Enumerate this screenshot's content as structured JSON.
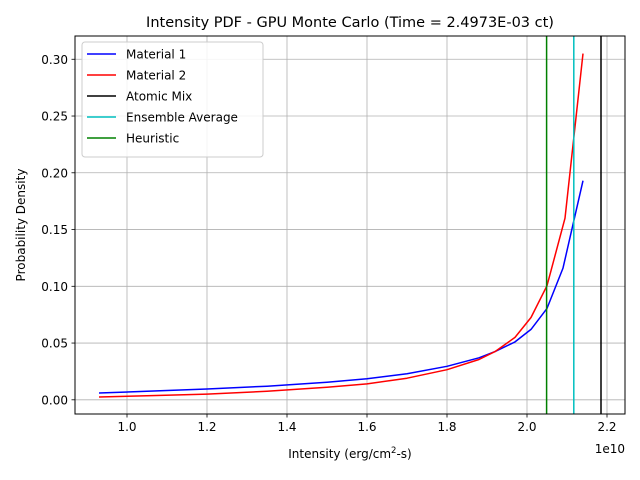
{
  "chart_data": {
    "type": "line",
    "title": "Intensity PDF - GPU Monte Carlo (Time = 2.4973E-03 ct)",
    "xlabel_main": "Intensity (erg/cm",
    "xlabel_sup": "2",
    "xlabel_tail": "-s)",
    "ylabel": "Probability Density",
    "x_offset_label": "1e10",
    "xlim": [
      0.87,
      2.245
    ],
    "ylim": [
      -0.0125,
      0.3205
    ],
    "grid": true,
    "legend_position": "top-left",
    "x_ticks": [
      {
        "value": 1.0,
        "label": "1.0"
      },
      {
        "value": 1.2,
        "label": "1.2"
      },
      {
        "value": 1.4,
        "label": "1.4"
      },
      {
        "value": 1.6,
        "label": "1.6"
      },
      {
        "value": 1.8,
        "label": "1.8"
      },
      {
        "value": 2.0,
        "label": "2.0"
      },
      {
        "value": 2.2,
        "label": "2.2"
      }
    ],
    "y_ticks": [
      {
        "value": 0.0,
        "label": "0.00"
      },
      {
        "value": 0.05,
        "label": "0.05"
      },
      {
        "value": 0.1,
        "label": "0.10"
      },
      {
        "value": 0.15,
        "label": "0.15"
      },
      {
        "value": 0.2,
        "label": "0.20"
      },
      {
        "value": 0.25,
        "label": "0.25"
      },
      {
        "value": 0.3,
        "label": "0.30"
      }
    ],
    "series": [
      {
        "name": "Material 1",
        "color": "#0000ff",
        "x": [
          0.93,
          1.05,
          1.2,
          1.35,
          1.5,
          1.6,
          1.7,
          1.8,
          1.88,
          1.92,
          1.97,
          2.01,
          2.05,
          2.09,
          2.14
        ],
        "y": [
          0.006,
          0.0075,
          0.0095,
          0.012,
          0.0155,
          0.0185,
          0.023,
          0.0295,
          0.037,
          0.0425,
          0.051,
          0.062,
          0.0805,
          0.116,
          0.193
        ]
      },
      {
        "name": "Material 2",
        "color": "#ff0000",
        "x": [
          0.93,
          1.05,
          1.2,
          1.35,
          1.5,
          1.6,
          1.7,
          1.8,
          1.88,
          1.92,
          1.97,
          2.01,
          2.05,
          2.095,
          2.14
        ],
        "y": [
          0.0025,
          0.0035,
          0.005,
          0.0075,
          0.011,
          0.014,
          0.019,
          0.0265,
          0.0355,
          0.0425,
          0.055,
          0.0725,
          0.1005,
          0.16,
          0.305
        ]
      }
    ],
    "vertical_lines": [
      {
        "name": "Atomic Mix",
        "color": "#000000",
        "x": 2.185
      },
      {
        "name": "Ensemble Average",
        "color": "#00bfbf",
        "x": 2.117
      },
      {
        "name": "Heuristic",
        "color": "#008000",
        "x": 2.049
      }
    ],
    "legend_order": [
      "Material 1",
      "Material 2",
      "Atomic Mix",
      "Ensemble Average",
      "Heuristic"
    ]
  }
}
